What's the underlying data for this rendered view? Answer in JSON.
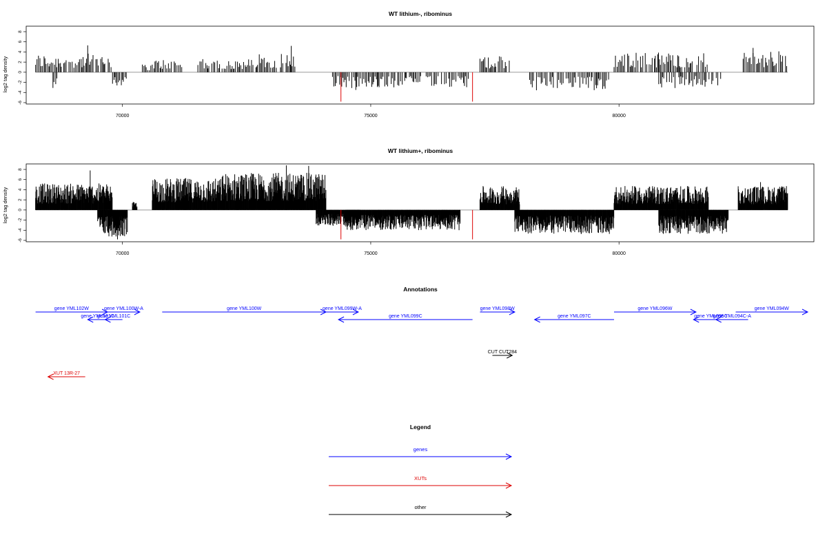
{
  "colors": {
    "gene": "#0000ff",
    "xut": "#dd0000",
    "other": "#000000",
    "bars": "#000000",
    "baseline": "#999999",
    "marker": "#dd0000"
  },
  "chart_data": [
    {
      "type": "bar",
      "title": "WT lithium-, ribominus",
      "ylabel": "log2 tag density",
      "xlim": [
        68200,
        83800
      ],
      "ylim": [
        -6,
        9
      ],
      "yticks": [
        -6,
        -4,
        -2,
        0,
        2,
        4,
        6,
        8
      ],
      "xticks": [
        70000,
        75000,
        80000
      ],
      "xtick_labels": [
        "70000",
        "75000",
        "80000"
      ],
      "markers_x": [
        74400,
        77050
      ],
      "density": "sparse",
      "regions": [
        {
          "start": 68250,
          "end": 69800,
          "sign": 1,
          "max": 3.5
        },
        {
          "start": 68600,
          "end": 68700,
          "sign": -1,
          "max": 3
        },
        {
          "start": 69800,
          "end": 70100,
          "sign": -1,
          "max": 3.8
        },
        {
          "start": 70400,
          "end": 70600,
          "sign": 1,
          "max": 1.5
        },
        {
          "start": 70600,
          "end": 71200,
          "sign": 1,
          "max": 2.5
        },
        {
          "start": 71500,
          "end": 72600,
          "sign": 1,
          "max": 2.5
        },
        {
          "start": 72600,
          "end": 73500,
          "sign": 1,
          "max": 3.5
        },
        {
          "start": 74200,
          "end": 77000,
          "sign": -1,
          "max": 3
        },
        {
          "start": 77200,
          "end": 77800,
          "sign": 1,
          "max": 3
        },
        {
          "start": 78200,
          "end": 79800,
          "sign": -1,
          "max": 3.5
        },
        {
          "start": 79900,
          "end": 81800,
          "sign": 1,
          "max": 3.8
        },
        {
          "start": 80800,
          "end": 82100,
          "sign": -1,
          "max": 3
        },
        {
          "start": 82500,
          "end": 83400,
          "sign": 1,
          "max": 4
        }
      ],
      "peaks": [
        {
          "x": 69300,
          "y": 5.3
        },
        {
          "x": 73400,
          "y": 5.2
        },
        {
          "x": 82700,
          "y": 4.8
        },
        {
          "x": 74700,
          "y": -3.5
        }
      ]
    },
    {
      "type": "bar",
      "title": "WT lithium+, ribominus",
      "ylabel": "log2 tag density",
      "xlim": [
        68200,
        83800
      ],
      "ylim": [
        -6,
        9
      ],
      "yticks": [
        -6,
        -4,
        -2,
        0,
        2,
        4,
        6,
        8
      ],
      "xticks": [
        70000,
        75000,
        80000
      ],
      "xtick_labels": [
        "70000",
        "75000",
        "80000"
      ],
      "markers_x": [
        74400,
        77050
      ],
      "density": "dense",
      "regions": [
        {
          "start": 68250,
          "end": 69800,
          "sign": 1,
          "max": 5
        },
        {
          "start": 69500,
          "end": 70100,
          "sign": -1,
          "max": 5
        },
        {
          "start": 70200,
          "end": 70300,
          "sign": 1,
          "max": 1.5
        },
        {
          "start": 70600,
          "end": 72000,
          "sign": 1,
          "max": 6
        },
        {
          "start": 72000,
          "end": 74100,
          "sign": 1,
          "max": 7
        },
        {
          "start": 73900,
          "end": 74800,
          "sign": -1,
          "max": 3
        },
        {
          "start": 74500,
          "end": 76800,
          "sign": -1,
          "max": 3.8
        },
        {
          "start": 77200,
          "end": 78000,
          "sign": 1,
          "max": 4.5
        },
        {
          "start": 77900,
          "end": 79900,
          "sign": -1,
          "max": 4.5
        },
        {
          "start": 79900,
          "end": 81800,
          "sign": 1,
          "max": 4.5
        },
        {
          "start": 80800,
          "end": 82200,
          "sign": -1,
          "max": 4.5
        },
        {
          "start": 82400,
          "end": 83400,
          "sign": 1,
          "max": 4.5
        }
      ],
      "peaks": [
        {
          "x": 69350,
          "y": 7.8
        },
        {
          "x": 73300,
          "y": 8.8
        },
        {
          "x": 73750,
          "y": 8.7
        },
        {
          "x": 69900,
          "y": -5.8
        },
        {
          "x": 82850,
          "y": 5.5
        }
      ]
    }
  ],
  "annotations": {
    "title": "Annotations",
    "xlim": [
      68200,
      83800
    ],
    "features": [
      {
        "label": "gene YML102W",
        "start": 68250,
        "end": 69700,
        "dir": "right",
        "row": 0,
        "kind": "gene"
      },
      {
        "label": "gene YML100W-A",
        "start": 69700,
        "end": 70350,
        "dir": "right",
        "row": 0,
        "kind": "gene"
      },
      {
        "label": "gene YML100W",
        "start": 70800,
        "end": 74100,
        "dir": "right",
        "row": 0,
        "kind": "gene"
      },
      {
        "label": "gene YML099W-A",
        "start": 74100,
        "end": 74750,
        "dir": "right",
        "row": 0,
        "kind": "gene"
      },
      {
        "label": "gene YML098W",
        "start": 77200,
        "end": 77900,
        "dir": "right",
        "row": 0,
        "kind": "gene"
      },
      {
        "label": "gene YML096W",
        "start": 79900,
        "end": 81550,
        "dir": "right",
        "row": 0,
        "kind": "gene"
      },
      {
        "label": "gene YML094W",
        "start": 82350,
        "end": 83800,
        "dir": "right",
        "row": 0,
        "kind": "gene"
      },
      {
        "label": "gene YML101C",
        "start": 69300,
        "end": 69700,
        "dir": "left",
        "row": 1,
        "kind": "gene"
      },
      {
        "label": "gene YML101C",
        "start": 69650,
        "end": 70000,
        "dir": "left",
        "row": 1,
        "kind": "gene"
      },
      {
        "label": "gene YML099C",
        "start": 74350,
        "end": 77050,
        "dir": "left",
        "row": 1,
        "kind": "gene"
      },
      {
        "label": "gene YML097C",
        "start": 78300,
        "end": 79900,
        "dir": "left",
        "row": 1,
        "kind": "gene"
      },
      {
        "label": "gene YML095C",
        "start": 81500,
        "end": 82200,
        "dir": "left",
        "row": 1,
        "kind": "gene"
      },
      {
        "label": "gene YML094C-A",
        "start": 81950,
        "end": 82600,
        "dir": "left",
        "row": 1,
        "kind": "gene"
      },
      {
        "label": "CUT CUT284",
        "start": 77450,
        "end": 77850,
        "dir": "right",
        "row": 2,
        "kind": "other"
      },
      {
        "label": "XUT 13R-27",
        "start": 68500,
        "end": 69250,
        "dir": "left",
        "row": 3,
        "kind": "xut"
      }
    ]
  },
  "legend": {
    "title": "Legend",
    "items": [
      {
        "label": "genes",
        "kind": "gene"
      },
      {
        "label": "XUTs",
        "kind": "xut"
      },
      {
        "label": "other",
        "kind": "other"
      }
    ]
  }
}
